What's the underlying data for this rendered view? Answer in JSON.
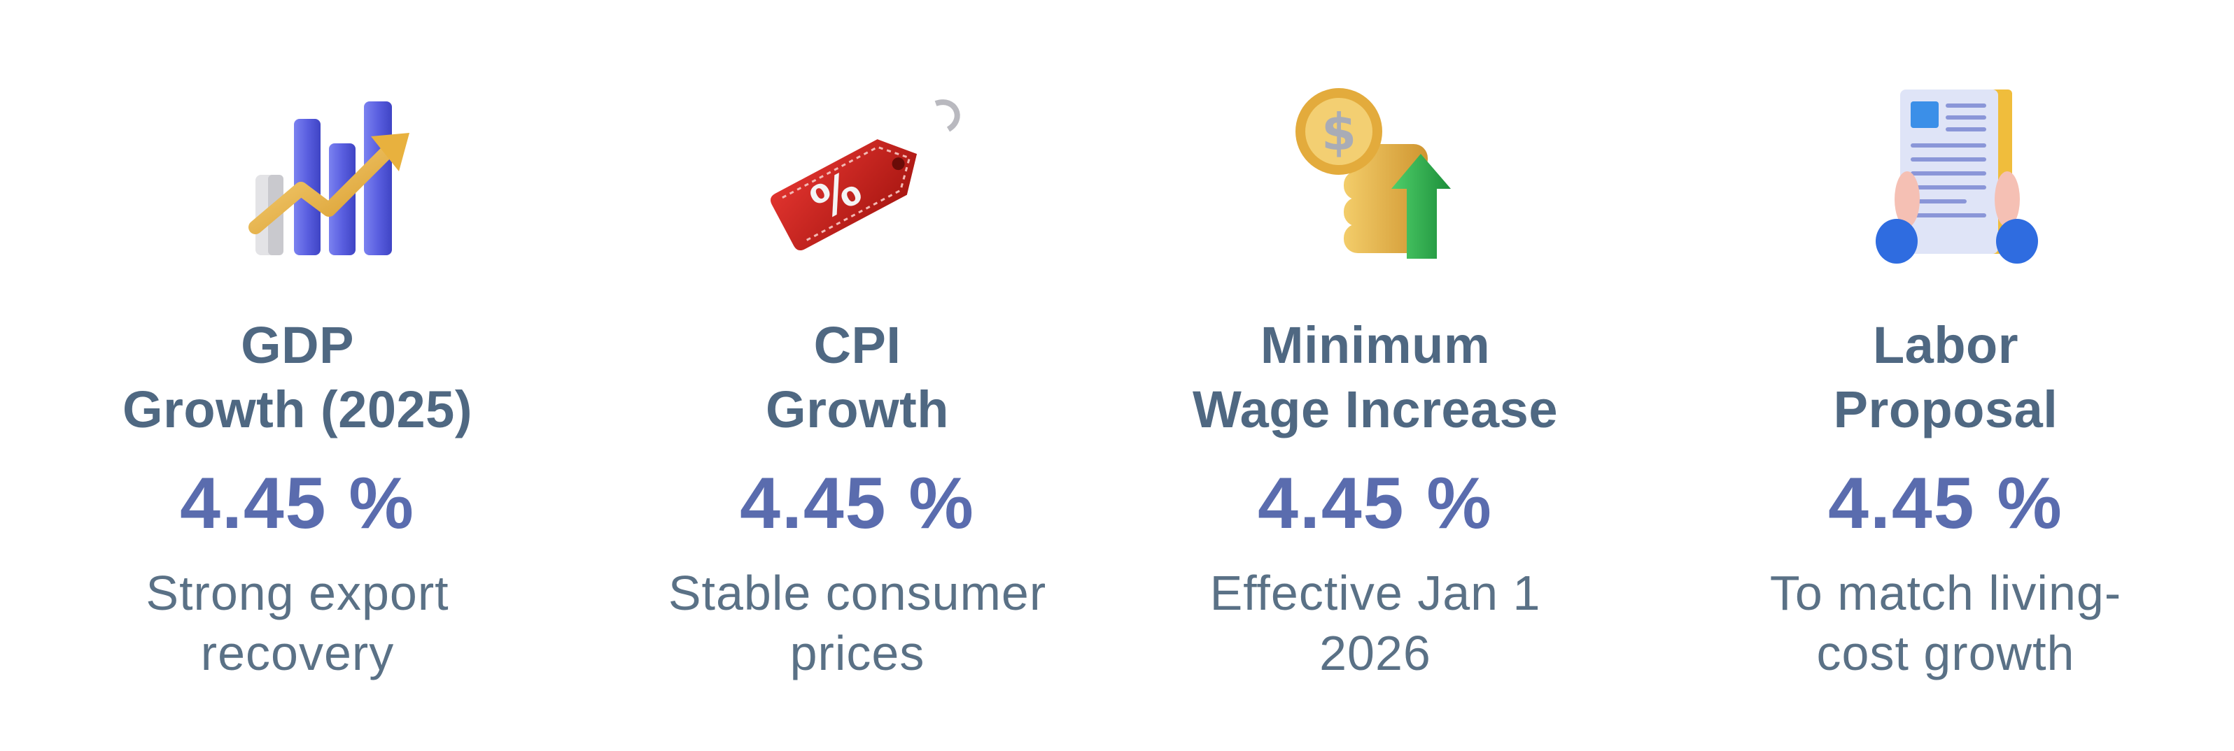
{
  "cards": [
    {
      "icon": "bar-chart-growth-icon",
      "title_lines": [
        "GDP",
        "Growth (2025)"
      ],
      "value": "4.45 %",
      "desc_lines": [
        "Strong export",
        "recovery"
      ]
    },
    {
      "icon": "price-tag-percent-icon",
      "title_lines": [
        "CPI",
        "Growth"
      ],
      "value": "4.45 %",
      "desc_lines": [
        "Stable consumer",
        "prices"
      ]
    },
    {
      "icon": "coins-up-arrow-icon",
      "title_lines": [
        "Minimum",
        "Wage Increase"
      ],
      "value": "4.45 %",
      "desc_lines": [
        "Effective Jan 1",
        "2026"
      ]
    },
    {
      "icon": "document-hands-icon",
      "title_lines": [
        "Labor",
        "Proposal"
      ],
      "value": "4.45 %",
      "desc_lines": [
        "To match living-",
        "cost growth"
      ]
    }
  ],
  "colors": {
    "title": "#4f6882",
    "value": "#5a6cae",
    "desc": "#5a7186"
  }
}
